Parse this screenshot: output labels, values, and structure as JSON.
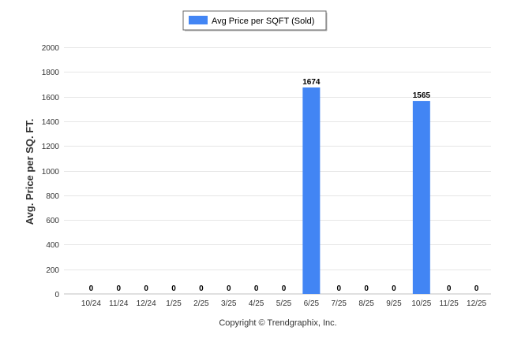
{
  "chart_data": {
    "type": "bar",
    "categories": [
      "10/24",
      "11/24",
      "12/24",
      "1/25",
      "2/25",
      "3/25",
      "4/25",
      "5/25",
      "6/25",
      "7/25",
      "8/25",
      "9/25",
      "10/25",
      "11/25",
      "12/25"
    ],
    "series": [
      {
        "name": "Avg Price per SQFT (Sold)",
        "values": [
          0,
          0,
          0,
          0,
          0,
          0,
          0,
          0,
          1674,
          0,
          0,
          0,
          1565,
          0,
          0
        ],
        "color": "#4285f4"
      }
    ],
    "data_labels": [
      "0",
      "0",
      "0",
      "0",
      "0",
      "0",
      "0",
      "0",
      "1674",
      "0",
      "0",
      "0",
      "1565",
      "0",
      "0"
    ],
    "ylabel": "Avg. Price per SQ. FT.",
    "xlabel": "",
    "ylim": [
      0,
      2000
    ],
    "yticks": [
      0,
      200,
      400,
      600,
      800,
      1000,
      1200,
      1400,
      1600,
      1800,
      2000
    ],
    "grid": true,
    "legend_position": "top-center"
  },
  "legend": {
    "label": "Avg Price per SQFT (Sold)"
  },
  "footer": {
    "copyright": "Copyright © Trendgraphix, Inc."
  }
}
